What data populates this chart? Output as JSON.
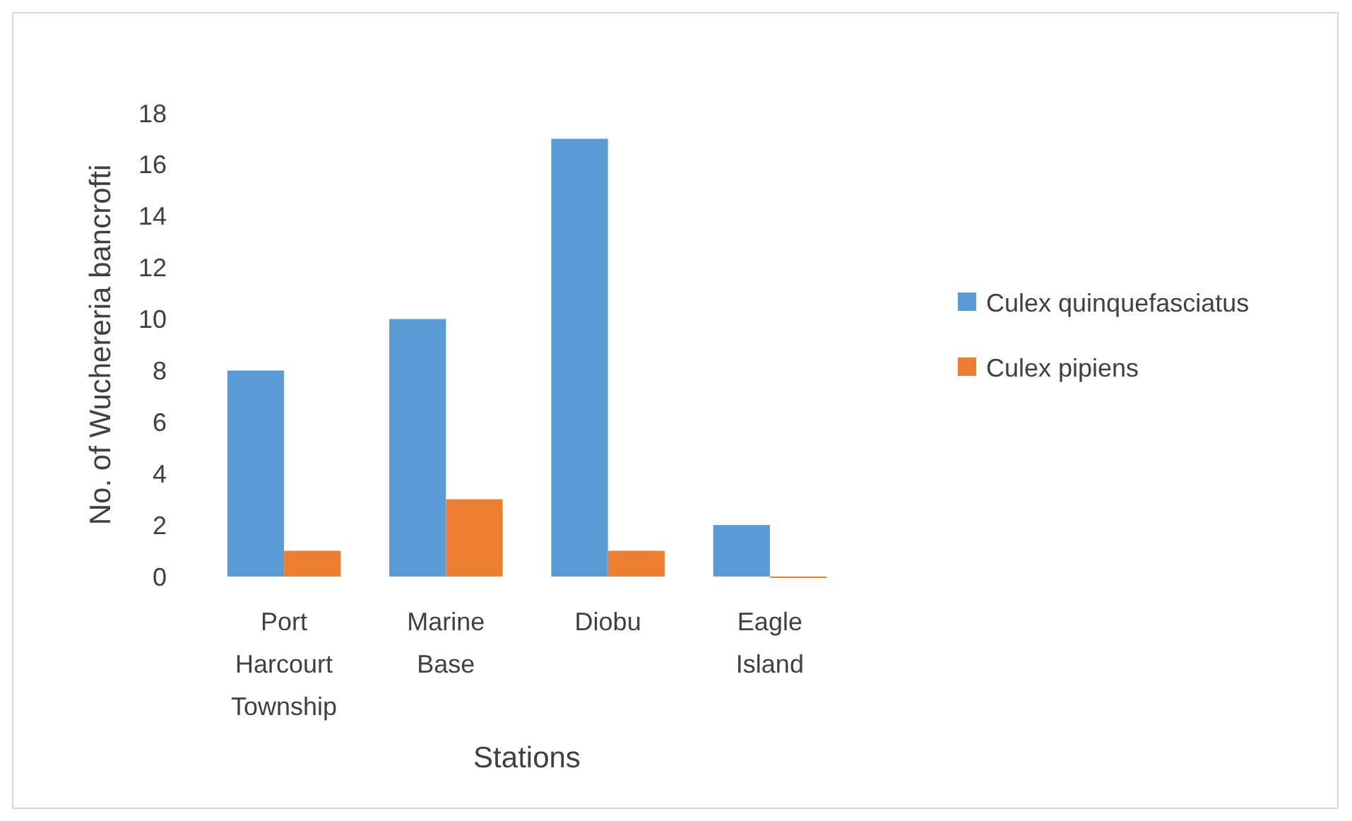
{
  "chart_data": {
    "type": "bar",
    "xlabel": "Stations",
    "ylabel": "No. of Wuchereria bancrofti",
    "categories": [
      "Port Harcourt Township",
      "Marine Base",
      "Diobu",
      "Eagle Island"
    ],
    "series": [
      {
        "name": "Culex quinquefasciatus",
        "color": "#5b9bd5",
        "values": [
          8,
          10,
          17,
          2
        ]
      },
      {
        "name": "Culex pipiens",
        "color": "#ed7d31",
        "values": [
          1,
          3,
          1,
          0
        ]
      }
    ],
    "ylim": [
      0,
      18
    ],
    "yticks": [
      0,
      2,
      4,
      6,
      8,
      10,
      12,
      14,
      16,
      18
    ],
    "grid": false,
    "legend": "right"
  }
}
